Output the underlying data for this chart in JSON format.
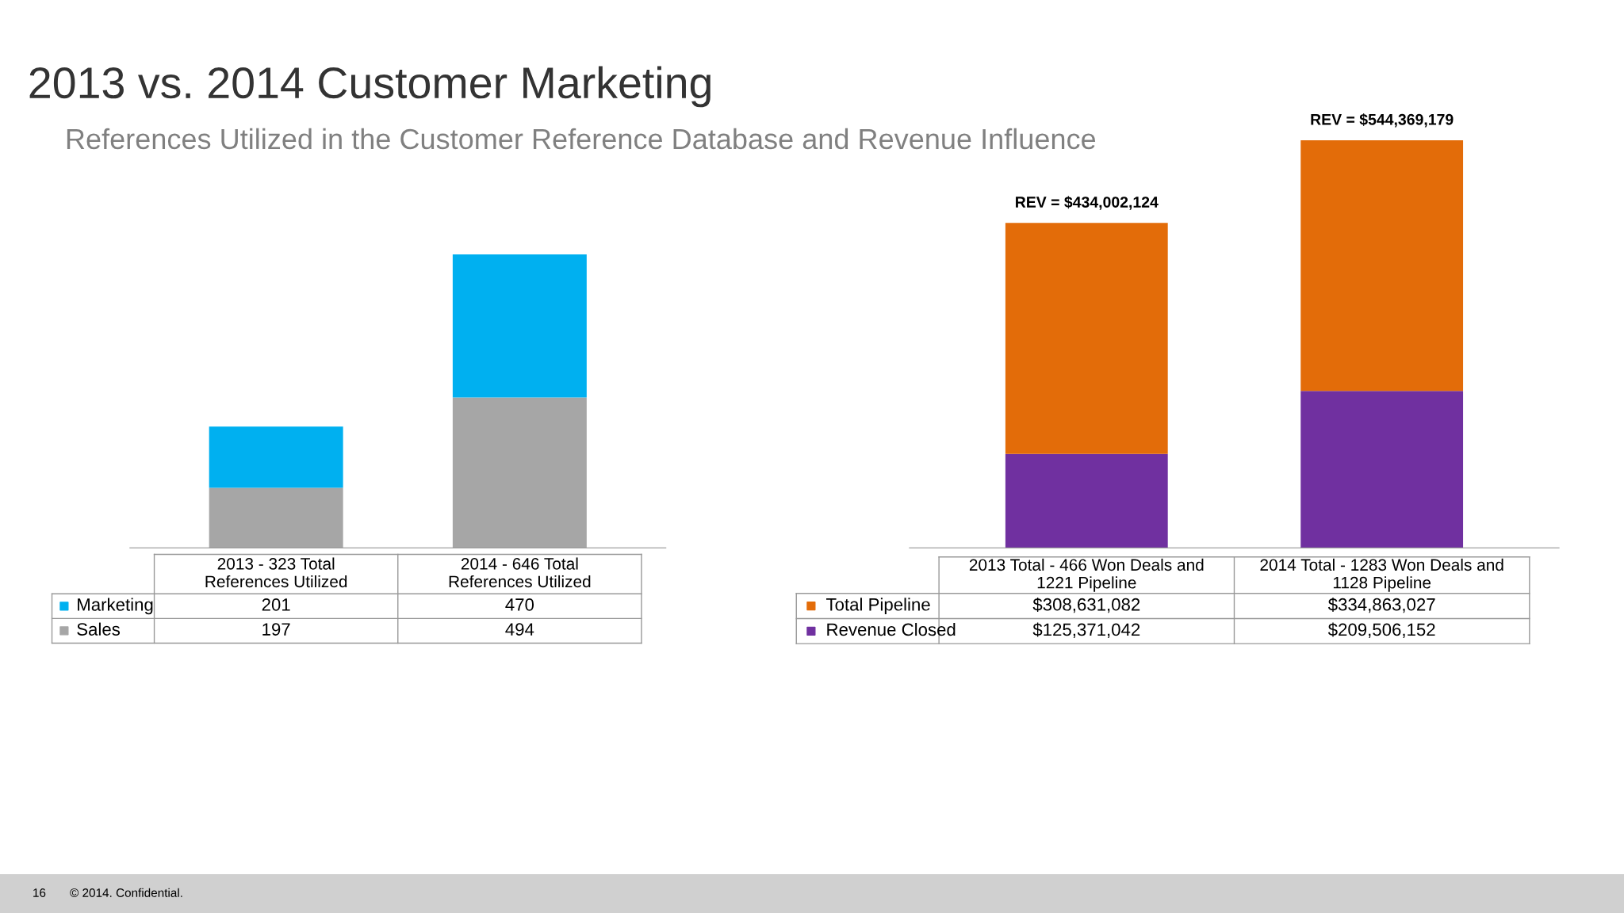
{
  "chart_data": [
    {
      "type": "bar",
      "stacked": true,
      "title": "2013 vs. 2014 Customer Marketing",
      "subtitle": "References Utilized in the Customer Reference Database and Revenue Influence",
      "categories": [
        "2013 - 323 Total\nReferences Utilized",
        "2014 - 646 Total\nReferences Utilized"
      ],
      "series": [
        {
          "name": "Sales",
          "color": "#a6a6a6",
          "values": [
            197,
            494
          ]
        },
        {
          "name": "Marketing",
          "color": "#00b0f0",
          "values": [
            201,
            470
          ]
        }
      ],
      "data_labels": true,
      "legend": "bottom left",
      "annotations": [
        "16",
        "© 2014. Confidential."
      ]
    },
    {
      "type": "bar",
      "stacked": true,
      "categories": [
        "2013 Total - 466 Won Deals and\n1221 Pipeline",
        "2014 Total - 1283 Won Deals and\n1128 Pipeline"
      ],
      "series": [
        {
          "name": "Revenue Closed",
          "color": "#7030a0",
          "values": [
            125371042,
            209506152
          ],
          "value_labels": [
            "$125,371,042",
            "$209,506,152"
          ]
        },
        {
          "name": "Total Pipeline",
          "color": "#e36c09",
          "values": [
            308631082,
            334863027
          ],
          "value_labels": [
            "$308,631,082",
            "$334,863,027"
          ]
        }
      ],
      "totals": [
        "REV = $434,002,124",
        "REV = $544,369,179"
      ],
      "legend": "bottom left"
    }
  ]
}
